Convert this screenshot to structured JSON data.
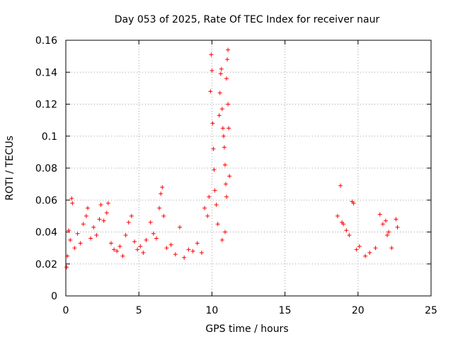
{
  "chart_data": {
    "type": "scatter",
    "title": "Day 053 of 2025, Rate Of TEC Index for receiver naur",
    "xlabel": "GPS time / hours",
    "ylabel": "ROTI / TECUs",
    "xlim": [
      0,
      25
    ],
    "ylim": [
      0,
      0.16
    ],
    "x_ticks": [
      "0",
      "5",
      "10",
      "15",
      "20",
      "25"
    ],
    "y_ticks": [
      "0",
      "0.02",
      "0.04",
      "0.06",
      "0.08",
      "0.1",
      "0.12",
      "0.14",
      "0.16"
    ],
    "grid": true,
    "marker": "plus",
    "color": "#ff0000",
    "series": [
      {
        "points": [
          [
            0.05,
            0.018
          ],
          [
            0.1,
            0.025
          ],
          [
            0.2,
            0.041
          ],
          [
            0.3,
            0.035
          ],
          [
            0.4,
            0.061
          ],
          [
            0.45,
            0.058
          ],
          [
            0.6,
            0.03
          ],
          [
            0.8,
            0.039
          ],
          [
            1.0,
            0.033
          ],
          [
            1.2,
            0.045
          ],
          [
            1.4,
            0.05
          ],
          [
            1.5,
            0.055
          ],
          [
            1.7,
            0.036
          ],
          [
            1.9,
            0.043
          ],
          [
            2.1,
            0.038
          ],
          [
            2.3,
            0.048
          ],
          [
            2.4,
            0.057
          ],
          [
            2.6,
            0.047
          ],
          [
            2.8,
            0.052
          ],
          [
            2.9,
            0.058
          ],
          [
            3.1,
            0.033
          ],
          [
            3.3,
            0.029
          ],
          [
            3.5,
            0.028
          ],
          [
            3.7,
            0.031
          ],
          [
            3.9,
            0.025
          ],
          [
            4.1,
            0.038
          ],
          [
            4.3,
            0.046
          ],
          [
            4.5,
            0.05
          ],
          [
            4.7,
            0.034
          ],
          [
            4.9,
            0.029
          ],
          [
            5.1,
            0.031
          ],
          [
            5.3,
            0.027
          ],
          [
            5.5,
            0.035
          ],
          [
            5.8,
            0.046
          ],
          [
            6.0,
            0.039
          ],
          [
            6.2,
            0.036
          ],
          [
            6.4,
            0.055
          ],
          [
            6.5,
            0.064
          ],
          [
            6.6,
            0.068
          ],
          [
            6.7,
            0.05
          ],
          [
            6.9,
            0.03
          ],
          [
            7.2,
            0.032
          ],
          [
            7.5,
            0.026
          ],
          [
            7.8,
            0.043
          ],
          [
            8.1,
            0.024
          ],
          [
            8.4,
            0.029
          ],
          [
            8.7,
            0.028
          ],
          [
            9.0,
            0.033
          ],
          [
            9.3,
            0.027
          ],
          [
            9.5,
            0.055
          ],
          [
            9.7,
            0.05
          ],
          [
            9.8,
            0.062
          ],
          [
            9.9,
            0.128
          ],
          [
            9.95,
            0.151
          ],
          [
            10.0,
            0.141
          ],
          [
            10.05,
            0.108
          ],
          [
            10.1,
            0.092
          ],
          [
            10.15,
            0.079
          ],
          [
            10.2,
            0.066
          ],
          [
            10.3,
            0.057
          ],
          [
            10.5,
            0.113
          ],
          [
            10.55,
            0.127
          ],
          [
            10.6,
            0.139
          ],
          [
            10.65,
            0.142
          ],
          [
            10.7,
            0.117
          ],
          [
            10.75,
            0.105
          ],
          [
            10.8,
            0.1
          ],
          [
            10.85,
            0.093
          ],
          [
            10.9,
            0.082
          ],
          [
            10.95,
            0.07
          ],
          [
            11.0,
            0.136
          ],
          [
            11.05,
            0.148
          ],
          [
            11.1,
            0.154
          ],
          [
            11.1,
            0.12
          ],
          [
            11.15,
            0.105
          ],
          [
            11.2,
            0.075
          ],
          [
            11.0,
            0.062
          ],
          [
            10.9,
            0.04
          ],
          [
            10.7,
            0.035
          ],
          [
            10.4,
            0.045
          ],
          [
            18.6,
            0.05
          ],
          [
            18.8,
            0.069
          ],
          [
            18.9,
            0.046
          ],
          [
            19.0,
            0.045
          ],
          [
            19.2,
            0.041
          ],
          [
            19.4,
            0.038
          ],
          [
            19.6,
            0.059
          ],
          [
            19.7,
            0.058
          ],
          [
            19.9,
            0.029
          ],
          [
            20.1,
            0.031
          ],
          [
            20.5,
            0.025
          ],
          [
            20.8,
            0.027
          ],
          [
            21.2,
            0.03
          ],
          [
            21.5,
            0.051
          ],
          [
            21.7,
            0.045
          ],
          [
            21.9,
            0.047
          ],
          [
            22.0,
            0.038
          ],
          [
            22.1,
            0.04
          ],
          [
            22.3,
            0.03
          ],
          [
            22.6,
            0.048
          ],
          [
            22.7,
            0.043
          ]
        ]
      }
    ]
  }
}
